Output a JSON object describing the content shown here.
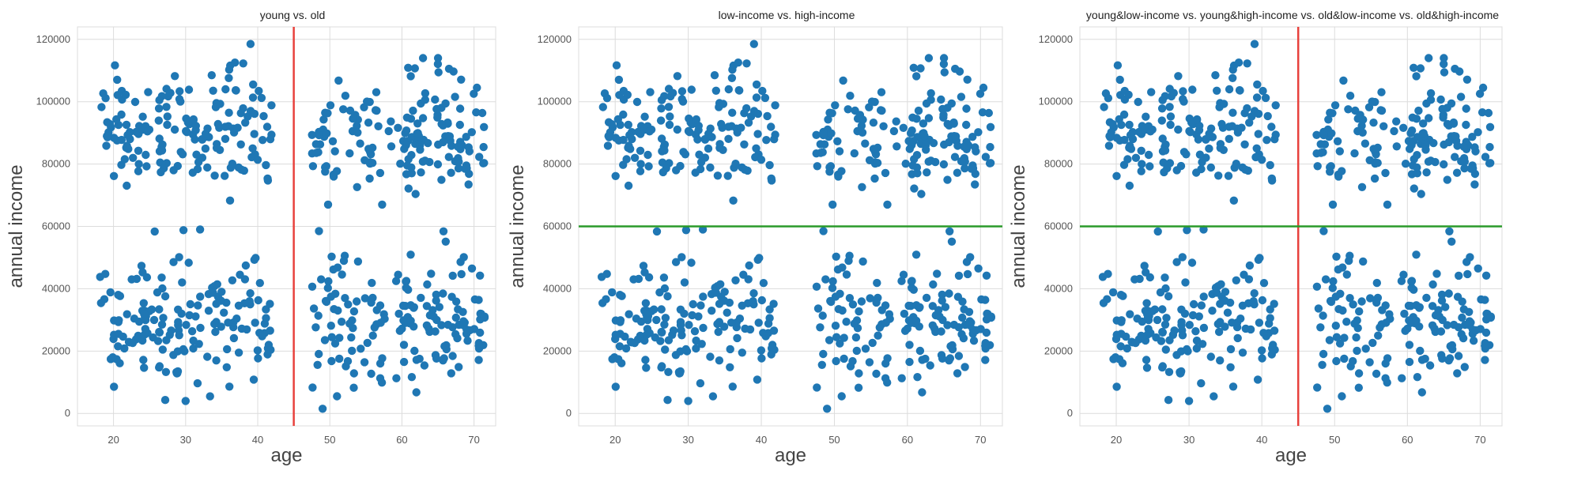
{
  "figure": {
    "background": "#ffffff",
    "plot_background": "#ffffff",
    "grid_color": "#dcdcdc",
    "point_color": "#1f77b4",
    "vline_color": "#e8413c",
    "hline_color": "#2a9a2a"
  },
  "chart_data": [
    {
      "type": "scatter",
      "title": "young vs. old",
      "xlabel": "age",
      "ylabel": "annual income",
      "xlim": [
        15,
        73
      ],
      "ylim": [
        -4000,
        124000
      ],
      "xticks": [
        20,
        30,
        40,
        50,
        60,
        70
      ],
      "yticks": [
        0,
        20000,
        40000,
        60000,
        80000,
        100000,
        120000
      ],
      "grid": true,
      "reference_lines": [
        {
          "orientation": "vertical",
          "value": 45,
          "color": "#e8413c"
        }
      ],
      "points": "same 640 (age, annual income) points in all three panels — generated in script from the description below",
      "data_description": {
        "age_range": [
          18,
          71
        ],
        "gap_in_age": [
          43,
          47
        ],
        "low_income_range": [
          1000,
          59000
        ],
        "high_income_range": [
          66000,
          119000
        ]
      }
    },
    {
      "type": "scatter",
      "title": "low-income vs. high-income",
      "xlabel": "age",
      "ylabel": "annual income",
      "xlim": [
        15,
        73
      ],
      "ylim": [
        -4000,
        124000
      ],
      "xticks": [
        20,
        30,
        40,
        50,
        60,
        70
      ],
      "yticks": [
        0,
        20000,
        40000,
        60000,
        80000,
        100000,
        120000
      ],
      "grid": true,
      "reference_lines": [
        {
          "orientation": "horizontal",
          "value": 60000,
          "color": "#2a9a2a"
        }
      ]
    },
    {
      "type": "scatter",
      "title": "young&low-income vs. young&high-income vs. old&low-income vs. old&high-income",
      "xlabel": "age",
      "ylabel": "annual income",
      "xlim": [
        15,
        73
      ],
      "ylim": [
        -4000,
        124000
      ],
      "xticks": [
        20,
        30,
        40,
        50,
        60,
        70
      ],
      "yticks": [
        0,
        20000,
        40000,
        60000,
        80000,
        100000,
        120000
      ],
      "grid": true,
      "reference_lines": [
        {
          "orientation": "vertical",
          "value": 45,
          "color": "#e8413c"
        },
        {
          "orientation": "horizontal",
          "value": 60000,
          "color": "#2a9a2a"
        }
      ]
    }
  ]
}
